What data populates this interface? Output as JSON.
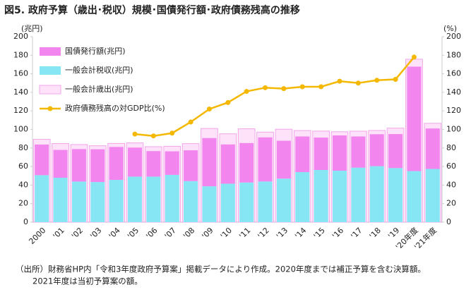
{
  "chart_data": {
    "type": "combo",
    "title": "図5. 政府予算（歳出･税収）規模･国債発行額･政府債務残高の推移",
    "y_label": "(兆円)",
    "y2_label": "(%)",
    "note": [
      "（出所）財務省HP内「令和3年度政府予算案」掲載データにより作成。2020年度までは補正予算を含む決算額。",
      "2021年度は当初予算案の額。"
    ],
    "categories": [
      "2000",
      "'01",
      "'02",
      "'03",
      "'04",
      "'05",
      "'06",
      "'07",
      "'08",
      "'09",
      "'10",
      "'11",
      "'12",
      "'13",
      "'14",
      "'15",
      "'16",
      "'17",
      "'18",
      "'19",
      "'20年度",
      "'21年度"
    ],
    "series": [
      {
        "name": "国債発行額(兆円)",
        "type": "bar",
        "stacked": true,
        "color": "#f285ee",
        "values": [
          33.0,
          30.0,
          35.0,
          35.3,
          35.5,
          31.3,
          27.5,
          25.4,
          33.2,
          52.0,
          42.3,
          42.5,
          47.5,
          40.8,
          38.4,
          34.9,
          38.0,
          33.6,
          34.4,
          36.6,
          112.6,
          43.6
        ]
      },
      {
        "name": "一般会計税収(兆円)",
        "type": "bar",
        "stacked": true,
        "color": "#86e6f4",
        "values": [
          50.7,
          47.9,
          43.8,
          43.3,
          45.6,
          49.1,
          49.1,
          51.0,
          44.3,
          38.7,
          41.5,
          42.8,
          43.9,
          47.0,
          54.0,
          56.3,
          55.5,
          58.8,
          60.4,
          58.4,
          55.1,
          57.4
        ]
      },
      {
        "name": "一般会計歳出(兆円)",
        "type": "bar",
        "stacked": false,
        "color": "#fde2f9",
        "values": [
          89.3,
          84.8,
          83.7,
          82.4,
          84.9,
          85.5,
          81.4,
          81.8,
          84.7,
          101.0,
          95.3,
          100.7,
          97.1,
          100.2,
          98.8,
          98.2,
          97.5,
          98.1,
          98.9,
          101.4,
          175.7,
          106.6
        ]
      },
      {
        "name": "政府債務残高の対GDP比(%)",
        "type": "line",
        "axis": "y2",
        "color": "#f5b800",
        "values": [
          null,
          null,
          null,
          null,
          null,
          95,
          93,
          96,
          108,
          122,
          129,
          141,
          145,
          144,
          146,
          146,
          152,
          150,
          153,
          154,
          178,
          null
        ]
      }
    ],
    "ylim": [
      0,
      200
    ],
    "yticks": [
      0,
      20,
      40,
      60,
      80,
      100,
      120,
      140,
      160,
      180,
      200
    ],
    "y2lim": [
      0,
      200
    ],
    "y2ticks": [
      0,
      20,
      40,
      60,
      80,
      100,
      120,
      140,
      160,
      180,
      200
    ],
    "grid": false,
    "legend": "upper left"
  }
}
